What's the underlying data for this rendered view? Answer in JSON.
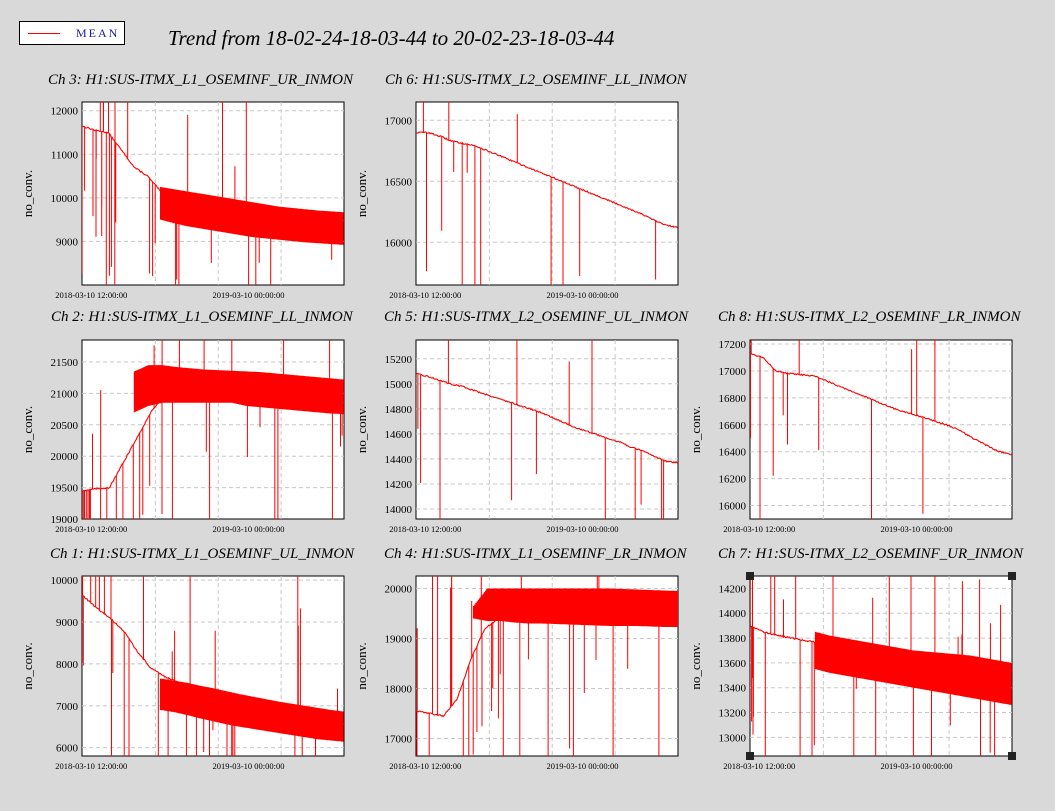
{
  "legend": {
    "label": "MEAN",
    "color": "#ff0000"
  },
  "page_title": "Trend from 18-02-24-18-03-44 to 20-02-23-18-03-44",
  "colors": {
    "background": "#d9d9d9",
    "series": "#ff0000",
    "grid": "#c8c8c8"
  },
  "chart_data": [
    {
      "type": "line",
      "title": "Ch 3: H1:SUS-ITMX_L1_OSEMINF_UR_INMON",
      "ylabel": "no_conv.",
      "ylim": [
        8000,
        12200
      ],
      "yticks": [
        9000,
        10000,
        11000,
        12000
      ],
      "xtick_labels": [
        "2018-03-10 12:00:00",
        "2019-03-10 00:00:00"
      ],
      "series": [
        {
          "values": [
            11650,
            11550,
            11500,
            11100,
            10700,
            10500,
            10150,
            10050,
            10000,
            9950,
            9900,
            9850,
            9800,
            9760,
            9720,
            9680,
            9640,
            9600,
            9560,
            9520,
            9480
          ]
        }
      ],
      "band": {
        "from": 0.3,
        "low": [
          9500,
          9420,
          9350,
          9300,
          9250,
          9200,
          9150,
          9100,
          9070,
          9040,
          9010,
          8980,
          8960,
          8940,
          8920
        ],
        "high": [
          10250,
          10200,
          10150,
          10100,
          10050,
          10000,
          9950,
          9900,
          9850,
          9800,
          9770,
          9740,
          9710,
          9690,
          9670
        ]
      }
    },
    {
      "type": "line",
      "title": "Ch 6: H1:SUS-ITMX_L2_OSEMINF_LL_INMON",
      "ylabel": "no_conv.",
      "ylim": [
        15650,
        17150
      ],
      "yticks": [
        16000,
        16500,
        17000
      ],
      "xtick_labels": [
        "2018-03-10 12:00:00",
        "2019-03-10 00:00:00"
      ],
      "series": [
        {
          "values": [
            16900,
            16900,
            16870,
            16830,
            16810,
            16790,
            16750,
            16710,
            16670,
            16630,
            16590,
            16550,
            16510,
            16470,
            16430,
            16390,
            16350,
            16310,
            16270,
            16230,
            16180,
            16140,
            16120
          ]
        }
      ]
    },
    {
      "type": "line",
      "title": "Ch 2: H1:SUS-ITMX_L1_OSEMINF_LL_INMON",
      "ylabel": "no_conv.",
      "ylim": [
        19000,
        21850
      ],
      "yticks": [
        19000,
        19500,
        20000,
        20500,
        21000,
        21500
      ],
      "xtick_labels": [
        "2018-03-10 12:00:00",
        "2019-03-10 00:00:00"
      ],
      "series": [
        {
          "values": [
            19450,
            19480,
            19500,
            19900,
            20300,
            20700,
            21000,
            21050,
            21050,
            21050,
            21050,
            21050,
            21000,
            20980,
            20960,
            20940,
            20920,
            20900,
            20880,
            20860
          ]
        }
      ],
      "band": {
        "from": 0.2,
        "low": [
          20700,
          20800,
          20850,
          20850,
          20850,
          20850,
          20850,
          20850,
          20800,
          20780,
          20760,
          20740,
          20720,
          20700,
          20680,
          20670
        ],
        "high": [
          21350,
          21450,
          21450,
          21420,
          21400,
          21380,
          21370,
          21360,
          21350,
          21340,
          21320,
          21300,
          21280,
          21260,
          21240,
          21220
        ]
      }
    },
    {
      "type": "line",
      "title": "Ch 5: H1:SUS-ITMX_L2_OSEMINF_UL_INMON",
      "ylabel": "no_conv.",
      "ylim": [
        13920,
        15350
      ],
      "yticks": [
        14000,
        14200,
        14400,
        14600,
        14800,
        15000,
        15200
      ],
      "xtick_labels": [
        "2018-03-10 12:00:00",
        "2019-03-10 00:00:00"
      ],
      "series": [
        {
          "values": [
            15080,
            15060,
            15030,
            15000,
            14980,
            14950,
            14920,
            14890,
            14860,
            14830,
            14800,
            14770,
            14730,
            14690,
            14650,
            14620,
            14590,
            14560,
            14530,
            14490,
            14460,
            14420,
            14380,
            14370
          ]
        }
      ]
    },
    {
      "type": "line",
      "title": "Ch 8: H1:SUS-ITMX_L2_OSEMINF_LR_INMON",
      "ylabel": "no_conv.",
      "ylim": [
        15900,
        17230
      ],
      "yticks": [
        16000,
        16200,
        16400,
        16600,
        16800,
        17000,
        17200
      ],
      "xtick_labels": [
        "2018-03-10 12:00:00",
        "2019-03-10 00:00:00"
      ],
      "series": [
        {
          "values": [
            17130,
            17100,
            17000,
            16980,
            16970,
            16960,
            16920,
            16880,
            16840,
            16800,
            16760,
            16720,
            16690,
            16660,
            16630,
            16600,
            16560,
            16500,
            16450,
            16400,
            16380
          ]
        }
      ]
    },
    {
      "type": "line",
      "title": "Ch 1: H1:SUS-ITMX_L1_OSEMINF_UL_INMON",
      "ylabel": "no_conv.",
      "ylim": [
        5800,
        10100
      ],
      "yticks": [
        6000,
        7000,
        8000,
        9000,
        10000
      ],
      "xtick_labels": [
        "2018-03-10 12:00:00",
        "2019-03-10 00:00:00"
      ],
      "series": [
        {
          "values": [
            9650,
            9350,
            9100,
            8800,
            8300,
            7900,
            7700,
            7550,
            7450,
            7350,
            7250,
            7150,
            7050,
            6950,
            6870,
            6800,
            6730,
            6660,
            6600,
            6550
          ]
        }
      ],
      "band": {
        "from": 0.3,
        "low": [
          6900,
          6850,
          6780,
          6700,
          6630,
          6560,
          6500,
          6450,
          6400,
          6350,
          6300,
          6250,
          6200,
          6170,
          6140
        ],
        "high": [
          7650,
          7600,
          7550,
          7480,
          7420,
          7350,
          7280,
          7220,
          7160,
          7100,
          7050,
          7000,
          6950,
          6900,
          6860
        ]
      }
    },
    {
      "type": "line",
      "title": "Ch 4: H1:SUS-ITMX_L1_OSEMINF_LR_INMON",
      "ylabel": "no_conv.",
      "ylim": [
        16650,
        20250
      ],
      "yticks": [
        17000,
        18000,
        19000,
        20000
      ],
      "xtick_labels": [
        "2018-03-10 12:00:00",
        "2019-03-10 00:00:00"
      ],
      "series": [
        {
          "values": [
            17550,
            17500,
            17450,
            17800,
            18600,
            19200,
            19400,
            19500,
            19550,
            19560,
            19560,
            19570,
            19570,
            19570,
            19570,
            19570,
            19570,
            19570,
            19570,
            19570
          ]
        }
      ],
      "band": {
        "from": 0.22,
        "low": [
          19400,
          19350,
          19350,
          19320,
          19300,
          19300,
          19290,
          19280,
          19270,
          19260,
          19250,
          19250,
          19250,
          19240,
          19230,
          19230
        ],
        "high": [
          19650,
          20000,
          20000,
          20000,
          20000,
          20000,
          20000,
          20000,
          20000,
          20000,
          20000,
          19990,
          19980,
          19970,
          19960,
          19950
        ]
      }
    },
    {
      "type": "line",
      "title": "Ch 7: H1:SUS-ITMX_L2_OSEMINF_UR_INMON",
      "ylabel": "no_conv.",
      "ylim": [
        12850,
        14300
      ],
      "yticks": [
        13000,
        13200,
        13400,
        13600,
        13800,
        14000,
        14200
      ],
      "xtick_labels": [
        "2018-03-10 12:00:00",
        "2019-03-10 00:00:00"
      ],
      "series": [
        {
          "values": [
            13900,
            13850,
            13820,
            13800,
            13780,
            13760,
            13740,
            13720,
            13700,
            13680,
            13660,
            13640,
            13620,
            13600,
            13590,
            13580,
            13570,
            13560,
            13550,
            13540
          ]
        }
      ],
      "band": {
        "from": 0.25,
        "low": [
          13550,
          13520,
          13500,
          13480,
          13460,
          13440,
          13420,
          13400,
          13380,
          13360,
          13340,
          13320,
          13300,
          13280,
          13260
        ],
        "high": [
          13850,
          13820,
          13800,
          13780,
          13760,
          13740,
          13720,
          13700,
          13690,
          13680,
          13670,
          13660,
          13640,
          13620,
          13600
        ]
      }
    }
  ]
}
